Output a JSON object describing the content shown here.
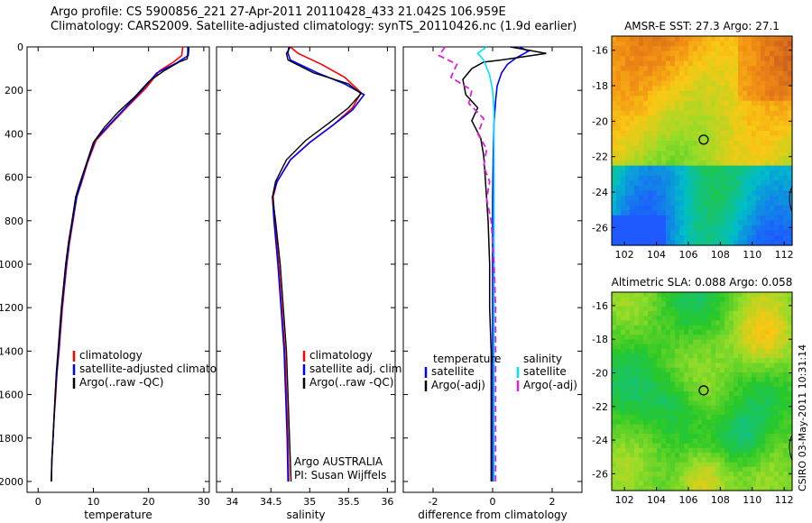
{
  "header": {
    "line1": "Argo profile: CS 5900856_221 27-Apr-2011 20110428_433 21.042S 106.959E",
    "line2": "Climatology: CARS2009. Satellite-adjusted climatology: synTS_20110426.nc (1.9d earlier)"
  },
  "credit": "CSIRO 03-May-2011 10:31:14",
  "colors": {
    "climatology": "#ff0000",
    "satellite": "#0000ff",
    "argo": "#000000",
    "salinity_satellite": "#00e0ff",
    "salinity_argo": "#e020e0"
  },
  "chart_data": [
    {
      "id": "temperature",
      "type": "line",
      "xlabel": "temperature",
      "ylabel": "",
      "xlim": [
        -2,
        31
      ],
      "ylim": [
        2050,
        0
      ],
      "xticks": [
        0,
        10,
        20,
        30
      ],
      "yticks": [
        0,
        200,
        400,
        600,
        800,
        1000,
        1200,
        1400,
        1600,
        1800,
        2000
      ],
      "legend": [
        "climatology",
        "satellite-adjusted climatolo",
        "Argo(..raw -QC)"
      ],
      "series": [
        {
          "name": "climatology",
          "color": "#ff0000",
          "width": 1.6,
          "dash": "",
          "points": [
            [
              26.2,
              0
            ],
            [
              26,
              40
            ],
            [
              24.5,
              70
            ],
            [
              22,
              110
            ],
            [
              19.5,
              190
            ],
            [
              16,
              280
            ],
            [
              13,
              360
            ],
            [
              10.5,
              430
            ],
            [
              9,
              530
            ],
            [
              7.8,
              630
            ],
            [
              7,
              690
            ],
            [
              6.4,
              790
            ],
            [
              5.7,
              900
            ],
            [
              5.2,
              1000
            ],
            [
              4.8,
              1100
            ],
            [
              4.4,
              1200
            ],
            [
              4.1,
              1300
            ],
            [
              3.8,
              1400
            ],
            [
              3.4,
              1500
            ],
            [
              3.2,
              1600
            ],
            [
              2.9,
              1700
            ],
            [
              2.7,
              1800
            ],
            [
              2.5,
              1900
            ],
            [
              2.4,
              2000
            ]
          ]
        },
        {
          "name": "satellite-adjusted climatolo",
          "color": "#0000ff",
          "width": 1.6,
          "dash": "",
          "points": [
            [
              27.3,
              0
            ],
            [
              27.2,
              40
            ],
            [
              25,
              75
            ],
            [
              21.5,
              120
            ],
            [
              18.8,
              200
            ],
            [
              15.8,
              280
            ],
            [
              12.8,
              360
            ],
            [
              10.3,
              430
            ],
            [
              8.9,
              530
            ],
            [
              7.7,
              630
            ],
            [
              7,
              690
            ],
            [
              6.3,
              790
            ],
            [
              5.6,
              900
            ],
            [
              5.1,
              1000
            ],
            [
              4.7,
              1100
            ],
            [
              4.3,
              1200
            ],
            [
              4,
              1300
            ],
            [
              3.7,
              1400
            ],
            [
              3.4,
              1500
            ],
            [
              3.1,
              1600
            ],
            [
              2.9,
              1700
            ],
            [
              2.7,
              1800
            ],
            [
              2.5,
              1900
            ],
            [
              2.4,
              2000
            ]
          ]
        },
        {
          "name": "Argo(..raw -QC)",
          "color": "#000000",
          "width": 1.4,
          "dash": "",
          "points": [
            [
              27.1,
              0
            ],
            [
              27.1,
              30
            ],
            [
              27,
              55
            ],
            [
              25.5,
              70
            ],
            [
              22.8,
              110
            ],
            [
              20,
              160
            ],
            [
              17.5,
              230
            ],
            [
              14.5,
              300
            ],
            [
              12,
              370
            ],
            [
              10,
              440
            ],
            [
              8.7,
              540
            ],
            [
              7.4,
              640
            ],
            [
              6.8,
              690
            ],
            [
              6.2,
              790
            ],
            [
              5.5,
              900
            ],
            [
              5,
              1000
            ],
            [
              4.6,
              1100
            ],
            [
              4.2,
              1200
            ],
            [
              3.9,
              1300
            ],
            [
              3.6,
              1400
            ],
            [
              3.3,
              1500
            ],
            [
              3.1,
              1600
            ],
            [
              2.9,
              1700
            ],
            [
              2.7,
              1800
            ],
            [
              2.5,
              1900
            ],
            [
              2.4,
              2000
            ]
          ]
        }
      ]
    },
    {
      "id": "salinity",
      "type": "line",
      "xlabel": "salinity",
      "ylabel": "",
      "xlim": [
        33.8,
        36.1
      ],
      "ylim": [
        2050,
        0
      ],
      "xticks": [
        34,
        34.5,
        35,
        35.5,
        36
      ],
      "yticks": [
        0,
        200,
        400,
        600,
        800,
        1000,
        1200,
        1400,
        1600,
        1800,
        2000
      ],
      "legend": [
        "climatology",
        "satellite adj. clim.",
        "Argo(..raw -QC)"
      ],
      "annotations": [
        "Argo AUSTRALIA",
        "PI: Susan Wijffels"
      ],
      "series": [
        {
          "name": "climatology",
          "color": "#ff0000",
          "width": 1.6,
          "dash": "",
          "points": [
            [
              34.75,
              0
            ],
            [
              34.85,
              30
            ],
            [
              35.15,
              80
            ],
            [
              35.45,
              140
            ],
            [
              35.66,
              210
            ],
            [
              35.55,
              280
            ],
            [
              35.3,
              360
            ],
            [
              35,
              440
            ],
            [
              34.75,
              520
            ],
            [
              34.58,
              620
            ],
            [
              34.53,
              690
            ],
            [
              34.55,
              800
            ],
            [
              34.6,
              1000
            ],
            [
              34.64,
              1200
            ],
            [
              34.68,
              1400
            ],
            [
              34.7,
              1600
            ],
            [
              34.72,
              1800
            ],
            [
              34.73,
              2000
            ]
          ]
        },
        {
          "name": "satellite adj. clim.",
          "color": "#0000ff",
          "width": 1.6,
          "dash": "",
          "points": [
            [
              34.73,
              0
            ],
            [
              34.72,
              30
            ],
            [
              34.75,
              60
            ],
            [
              35.1,
              120
            ],
            [
              35.45,
              170
            ],
            [
              35.7,
              220
            ],
            [
              35.55,
              290
            ],
            [
              35.3,
              360
            ],
            [
              35,
              440
            ],
            [
              34.75,
              520
            ],
            [
              34.58,
              620
            ],
            [
              34.52,
              690
            ],
            [
              34.54,
              800
            ],
            [
              34.59,
              1000
            ],
            [
              34.63,
              1200
            ],
            [
              34.67,
              1400
            ],
            [
              34.69,
              1600
            ],
            [
              34.71,
              1800
            ],
            [
              34.72,
              2000
            ]
          ]
        },
        {
          "name": "Argo(..raw -QC)",
          "color": "#000000",
          "width": 1.4,
          "dash": "",
          "points": [
            [
              34.75,
              0
            ],
            [
              34.7,
              30
            ],
            [
              34.72,
              60
            ],
            [
              35.05,
              120
            ],
            [
              35.5,
              170
            ],
            [
              35.66,
              215
            ],
            [
              35.5,
              280
            ],
            [
              35.25,
              350
            ],
            [
              34.95,
              430
            ],
            [
              34.7,
              520
            ],
            [
              34.56,
              620
            ],
            [
              34.52,
              690
            ],
            [
              34.56,
              800
            ],
            [
              34.62,
              1000
            ],
            [
              34.66,
              1200
            ],
            [
              34.7,
              1400
            ],
            [
              34.72,
              1600
            ],
            [
              34.74,
              1800
            ],
            [
              34.76,
              2000
            ]
          ]
        }
      ]
    },
    {
      "id": "difference",
      "type": "line",
      "xlabel": "difference from climatology",
      "ylabel": "",
      "xlim": [
        -3,
        3
      ],
      "ylim": [
        2050,
        0
      ],
      "xticks": [
        -2,
        0,
        2
      ],
      "yticks": [
        0,
        200,
        400,
        600,
        800,
        1000,
        1200,
        1400,
        1600,
        1800,
        2000
      ],
      "legend_left": {
        "title": "temperature",
        "items": [
          "satellite",
          "Argo(-adj)"
        ]
      },
      "legend_right": {
        "title": "salinity",
        "items": [
          "satellite",
          "Argo(-adj)"
        ]
      },
      "series": [
        {
          "name": "temperature satellite",
          "color": "#0000ff",
          "width": 1.6,
          "dash": "",
          "points": [
            [
              0.9,
              0
            ],
            [
              1.2,
              20
            ],
            [
              0.8,
              50
            ],
            [
              0.5,
              80
            ],
            [
              0.3,
              120
            ],
            [
              0.15,
              180
            ],
            [
              0.1,
              250
            ],
            [
              0.05,
              350
            ],
            [
              0.02,
              500
            ],
            [
              0,
              700
            ],
            [
              0,
              1000
            ],
            [
              0,
              1500
            ],
            [
              0,
              2000
            ]
          ]
        },
        {
          "name": "temperature Argo(-adj)",
          "color": "#000000",
          "width": 1.5,
          "dash": "",
          "points": [
            [
              0.6,
              0
            ],
            [
              1.8,
              30
            ],
            [
              0.3,
              60
            ],
            [
              -0.3,
              70
            ],
            [
              -0.7,
              100
            ],
            [
              -1,
              150
            ],
            [
              -0.9,
              220
            ],
            [
              -0.5,
              280
            ],
            [
              -0.7,
              340
            ],
            [
              -0.4,
              420
            ],
            [
              -0.3,
              500
            ],
            [
              -0.25,
              600
            ],
            [
              -0.2,
              700
            ],
            [
              -0.15,
              800
            ],
            [
              -0.1,
              1000
            ],
            [
              -0.1,
              1200
            ],
            [
              -0.05,
              1400
            ],
            [
              -0.05,
              1600
            ],
            [
              -0.05,
              1800
            ],
            [
              -0.05,
              2000
            ]
          ]
        },
        {
          "name": "salinity satellite",
          "color": "#00e0ff",
          "width": 1.6,
          "dash": "",
          "points": [
            [
              -0.2,
              0
            ],
            [
              -0.5,
              30
            ],
            [
              -0.3,
              60
            ],
            [
              -0.1,
              130
            ],
            [
              0,
              200
            ],
            [
              0.05,
              300
            ],
            [
              0.05,
              400
            ],
            [
              0.05,
              600
            ],
            [
              0.05,
              800
            ],
            [
              0.05,
              1000
            ],
            [
              0.05,
              1500
            ],
            [
              0.05,
              2000
            ]
          ]
        },
        {
          "name": "salinity Argo(-adj)",
          "color": "#e020e0",
          "width": 1.8,
          "dash": "7,4",
          "points": [
            [
              -1.6,
              0
            ],
            [
              -1.8,
              40
            ],
            [
              -1.2,
              80
            ],
            [
              -1.4,
              140
            ],
            [
              -0.7,
              200
            ],
            [
              -0.8,
              260
            ],
            [
              -0.3,
              330
            ],
            [
              -0.5,
              400
            ],
            [
              -0.2,
              470
            ],
            [
              -0.3,
              550
            ],
            [
              -0.1,
              620
            ],
            [
              -0.2,
              700
            ],
            [
              -0.05,
              800
            ],
            [
              0.05,
              1000
            ],
            [
              0.1,
              1200
            ],
            [
              0.1,
              1500
            ],
            [
              0.1,
              1800
            ],
            [
              0.1,
              2000
            ]
          ]
        }
      ]
    },
    {
      "id": "sst_map",
      "type": "heatmap",
      "title": "AMSR-E SST: 27.3 Argo: 27.1",
      "xlim": [
        101.2,
        112.5
      ],
      "ylim": [
        -27,
        -15.2
      ],
      "xticks": [
        102,
        104,
        106,
        108,
        110,
        112
      ],
      "yticks": [
        -16,
        -18,
        -20,
        -22,
        -24,
        -26
      ],
      "marker": [
        106.959,
        -21.042
      ]
    },
    {
      "id": "sla_map",
      "type": "heatmap",
      "title": "Altimetric SLA: 0.088 Argo: 0.058",
      "xlim": [
        101.2,
        112.5
      ],
      "ylim": [
        -27,
        -15.2
      ],
      "xticks": [
        102,
        104,
        106,
        108,
        110,
        112
      ],
      "yticks": [
        -16,
        -18,
        -20,
        -22,
        -24,
        -26
      ],
      "marker": [
        106.959,
        -21.042
      ]
    }
  ]
}
